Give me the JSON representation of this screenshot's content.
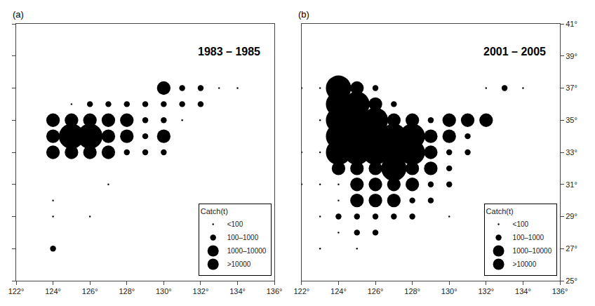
{
  "chart_data": [
    {
      "type": "scatter",
      "title": "1983 – 1985",
      "annotations": [
        "(a)"
      ],
      "legend_title": "Catch(t)",
      "legend": "lower right",
      "grid": false,
      "tick_labels": "x",
      "xlim": [
        122,
        136
      ],
      "xticks": [
        {
          "value": 122,
          "label": "122°"
        },
        {
          "value": 124,
          "label": "124°"
        },
        {
          "value": 126,
          "label": "126°"
        },
        {
          "value": 128,
          "label": "128°"
        },
        {
          "value": 130,
          "label": "130°"
        },
        {
          "value": 132,
          "label": "132°"
        },
        {
          "value": 134,
          "label": "134°"
        },
        {
          "value": 136,
          "label": "136°"
        }
      ],
      "ylim": [
        25,
        41
      ],
      "yticks": [
        25,
        27,
        29,
        31,
        33,
        35,
        37,
        39,
        41
      ],
      "series": [
        {
          "name": "<100",
          "color": "#000000",
          "size": 2,
          "x": [
            124,
            125,
            127,
            131,
            133,
            134,
            124,
            126
          ],
          "values": [
            29,
            36,
            31,
            35,
            37,
            37,
            30,
            29
          ]
        },
        {
          "name": "100–1000",
          "color": "#000000",
          "size": 8,
          "x": [
            124,
            126,
            127,
            128,
            128,
            129,
            129,
            129,
            129,
            130,
            130,
            130,
            131,
            131,
            132,
            132
          ],
          "values": [
            27,
            36,
            36,
            33,
            36,
            33,
            34,
            35,
            36,
            33,
            35,
            36,
            36,
            37,
            36,
            37
          ]
        },
        {
          "name": "1000–10000",
          "color": "#000000",
          "size": 20,
          "x": [
            124,
            124,
            124,
            125,
            125,
            126,
            126,
            127,
            127,
            127,
            128,
            128,
            130,
            130
          ],
          "values": [
            33,
            34,
            35,
            33,
            35,
            33,
            35,
            33,
            34,
            35,
            34,
            35,
            34,
            37
          ]
        },
        {
          "name": ">10000",
          "color": "#000000",
          "size": 40,
          "x": [
            125,
            126
          ],
          "values": [
            34,
            34
          ]
        }
      ]
    },
    {
      "type": "scatter",
      "title": "2001 – 2005",
      "annotations": [
        "(b)"
      ],
      "legend_title": "Catch(t)",
      "legend": "lower right",
      "grid": false,
      "xlim": [
        122,
        136
      ],
      "xticks": [
        {
          "value": 122,
          "label": "122°"
        },
        {
          "value": 124,
          "label": "124°"
        },
        {
          "value": 126,
          "label": "126°"
        },
        {
          "value": 128,
          "label": "128°"
        },
        {
          "value": 130,
          "label": "130°"
        },
        {
          "value": 132,
          "label": "132°"
        },
        {
          "value": 134,
          "label": "134°"
        },
        {
          "value": 136,
          "label": "136°"
        }
      ],
      "ylim": [
        25,
        41
      ],
      "yticks": [
        {
          "value": 25,
          "label": "25°"
        },
        {
          "value": 27,
          "label": "27°"
        },
        {
          "value": 29,
          "label": "29°"
        },
        {
          "value": 31,
          "label": "31°"
        },
        {
          "value": 33,
          "label": "33°"
        },
        {
          "value": 35,
          "label": "35°"
        },
        {
          "value": 37,
          "label": "37°"
        },
        {
          "value": 39,
          "label": "39°"
        },
        {
          "value": 41,
          "label": "41°"
        }
      ],
      "series": [
        {
          "name": "<100",
          "color": "#000000",
          "size": 2,
          "x": [
            122,
            122,
            122,
            123,
            123,
            123,
            123,
            123,
            123,
            124,
            124,
            124,
            125,
            130,
            132,
            134
          ],
          "values": [
            37,
            33,
            31,
            37,
            35,
            33,
            31,
            29,
            27,
            31,
            30,
            28,
            27,
            29,
            37,
            37
          ]
        },
        {
          "name": "100–1000",
          "color": "#000000",
          "size": 8,
          "x": [
            124,
            125,
            125,
            126,
            126,
            126,
            127,
            127,
            128,
            128,
            129,
            129,
            129,
            130,
            130,
            130,
            131,
            131,
            133
          ],
          "values": [
            29,
            29,
            28,
            37,
            29,
            28,
            36,
            29,
            30,
            29,
            35,
            31,
            30,
            33,
            32,
            31,
            34,
            33,
            37
          ]
        },
        {
          "name": "1000–10000",
          "color": "#000000",
          "size": 20,
          "x": [
            124,
            125,
            125,
            125,
            125,
            126,
            126,
            126,
            126,
            127,
            127,
            127,
            128,
            128,
            128,
            129,
            129,
            129,
            130,
            130,
            131,
            132
          ],
          "values": [
            32,
            37,
            32,
            31,
            30,
            36,
            32,
            31,
            30,
            35,
            31,
            30,
            35,
            32,
            31,
            34,
            33,
            32,
            35,
            34,
            35,
            35
          ]
        },
        {
          "name": ">10000",
          "color": "#000000",
          "size": 40,
          "x": [
            124,
            124,
            124,
            124,
            124,
            125,
            125,
            125,
            125,
            126,
            126,
            126,
            127,
            127,
            127,
            128,
            128
          ],
          "values": [
            37,
            36,
            35,
            34,
            33,
            36,
            35,
            34,
            33,
            35,
            34,
            33,
            34,
            33,
            32,
            34,
            33
          ]
        }
      ]
    }
  ]
}
